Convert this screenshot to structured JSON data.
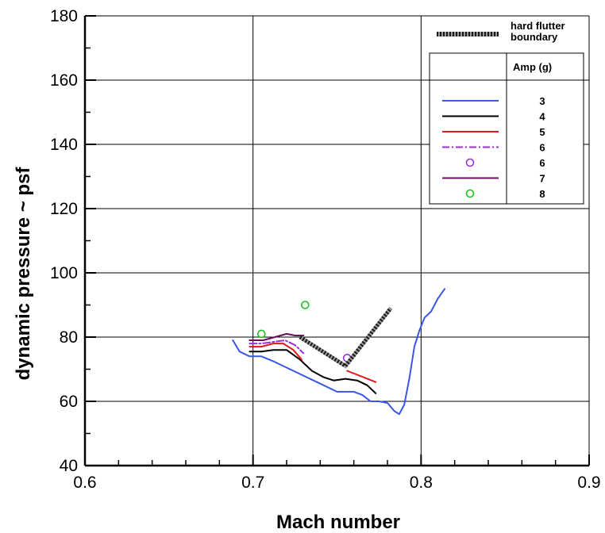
{
  "chart_data": {
    "type": "line",
    "title": "",
    "xlabel": "Mach number",
    "ylabel": "dynamic pressure ~ psf",
    "xlim": [
      0.6,
      0.9
    ],
    "ylim": [
      40,
      180
    ],
    "xticks": [
      "0.6",
      "0.7",
      "0.8",
      "0.9"
    ],
    "yticks": [
      "40",
      "60",
      "80",
      "100",
      "120",
      "140",
      "160",
      "180"
    ],
    "grid": true,
    "legend_placement": "top-right",
    "boundary": {
      "name": "hard flutter boundary",
      "name_lines": [
        "hard flutter",
        "boundary"
      ],
      "color": "#808080",
      "x": [
        0.728,
        0.755,
        0.782
      ],
      "y": [
        80,
        71,
        89
      ]
    },
    "legend_header": "Amp (g)",
    "series": [
      {
        "name": "3",
        "kind": "line",
        "color": "#3a55e8",
        "dash": "",
        "x": [
          0.688,
          0.692,
          0.698,
          0.705,
          0.712,
          0.72,
          0.73,
          0.74,
          0.75,
          0.76,
          0.765,
          0.77,
          0.775,
          0.78,
          0.784,
          0.787,
          0.79,
          0.793,
          0.796,
          0.799,
          0.802,
          0.806,
          0.81,
          0.814
        ],
        "y": [
          79,
          75.5,
          74,
          74,
          72.5,
          70.5,
          68,
          65.5,
          63,
          63,
          62,
          60,
          60,
          59.5,
          57,
          56,
          59,
          67,
          77,
          82,
          86,
          88,
          92,
          95
        ]
      },
      {
        "name": "4",
        "kind": "line",
        "color": "#000000",
        "dash": "",
        "x": [
          0.698,
          0.705,
          0.712,
          0.72,
          0.728,
          0.735,
          0.742,
          0.748,
          0.755,
          0.762,
          0.768,
          0.773
        ],
        "y": [
          75.5,
          75.5,
          76,
          76,
          73,
          69.5,
          67.5,
          66.5,
          67,
          66.5,
          65,
          62.5
        ]
      },
      {
        "name": "5",
        "kind": "line",
        "color": "#e01818",
        "dash": "",
        "x": [
          0.698,
          0.705,
          0.712,
          0.718,
          0.724,
          0.729
        ],
        "y": [
          77,
          77,
          78,
          78,
          76,
          73
        ]
      },
      {
        "name": "5",
        "kind": "line",
        "color": "#e01818",
        "dash": "",
        "x": [
          0.756,
          0.773
        ],
        "y": [
          69.5,
          66
        ]
      },
      {
        "name": "6",
        "kind": "line",
        "color": "#9b2fe0",
        "dash": "9,3,2,3",
        "x": [
          0.698,
          0.705,
          0.712,
          0.719,
          0.725,
          0.73
        ],
        "y": [
          78,
          78,
          78.5,
          79,
          77.5,
          75
        ]
      },
      {
        "name": "6",
        "kind": "marker",
        "color": "#9b2fe0",
        "x": [
          0.756
        ],
        "y": [
          73.5
        ]
      },
      {
        "name": "7",
        "kind": "line",
        "color": "#6a1058",
        "dash": "",
        "x": [
          0.698,
          0.706,
          0.713,
          0.72,
          0.725,
          0.73
        ],
        "y": [
          79,
          79,
          80,
          81,
          80.5,
          80.5
        ]
      },
      {
        "name": "8",
        "kind": "marker",
        "color": "#1ec21e",
        "x": [
          0.705,
          0.731
        ],
        "y": [
          81,
          90
        ]
      }
    ]
  }
}
